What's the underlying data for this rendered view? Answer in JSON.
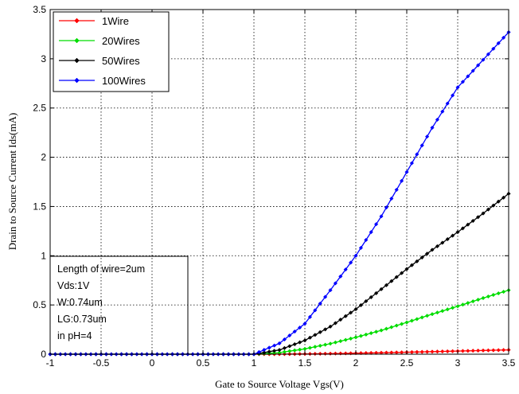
{
  "chart_data": {
    "type": "line",
    "xlabel": "Gate to Source Voltage Vgs(V)",
    "ylabel": "Drain to Source Current Ids(mA)",
    "xlim": [
      -1,
      3.5
    ],
    "ylim": [
      0,
      3.5
    ],
    "x_ticks": [
      -1,
      -0.5,
      0,
      0.5,
      1,
      1.5,
      2,
      2.5,
      3,
      3.5
    ],
    "y_ticks": [
      0,
      0.5,
      1,
      1.5,
      2,
      2.5,
      3,
      3.5
    ],
    "x_tick_labels": [
      "-1",
      "-0.5",
      "0",
      "0.5",
      "1",
      "1.5",
      "2",
      "2.5",
      "3",
      "3.5"
    ],
    "y_tick_labels": [
      "0",
      "0.5",
      "1",
      "1.5",
      "2",
      "2.5",
      "3",
      "3.5"
    ],
    "grid": true,
    "grid_style": "dotted",
    "legend_position": "top-left",
    "marker": "diamond",
    "x": [
      -1,
      -0.5,
      0,
      0.5,
      1,
      1.25,
      1.5,
      1.75,
      2,
      2.25,
      2.5,
      2.75,
      3,
      3.25,
      3.5
    ],
    "series": [
      {
        "name": "1Wire",
        "color": "#ff0000",
        "values": [
          0,
          0,
          0,
          0,
          0,
          0.0006,
          0.0026,
          0.0059,
          0.0102,
          0.015,
          0.0202,
          0.0258,
          0.0316,
          0.0378,
          0.044
        ]
      },
      {
        "name": "20Wires",
        "color": "#00dd00",
        "values": [
          0,
          0,
          0,
          0,
          0,
          0.016,
          0.054,
          0.107,
          0.171,
          0.242,
          0.323,
          0.407,
          0.487,
          0.57,
          0.65
        ]
      },
      {
        "name": "50Wires",
        "color": "#000000",
        "values": [
          0,
          0,
          0,
          0,
          0,
          0.043,
          0.14,
          0.28,
          0.457,
          0.66,
          0.865,
          1.06,
          1.24,
          1.43,
          1.63
        ]
      },
      {
        "name": "100Wires",
        "color": "#0000ff",
        "values": [
          0,
          0,
          0,
          0,
          0,
          0.11,
          0.31,
          0.65,
          1.0,
          1.4,
          1.85,
          2.3,
          2.71,
          2.99,
          3.27
        ]
      }
    ],
    "annotation": {
      "lines": [
        "Length of wire=2um",
        "Vds:1V",
        "W:0.74um",
        "LG:0.73um",
        "in pH=4"
      ]
    }
  }
}
